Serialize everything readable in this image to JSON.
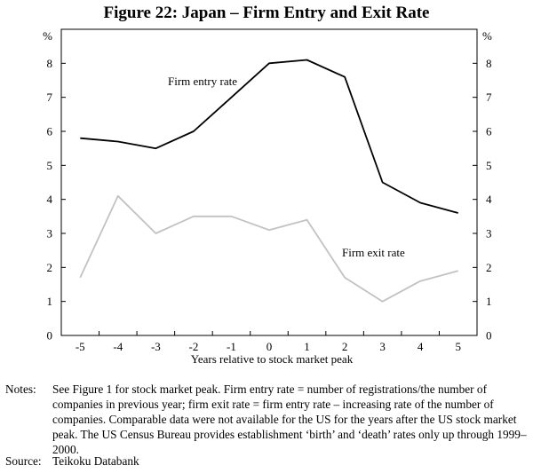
{
  "title": "Figure 22: Japan – Firm Entry and Exit Rate",
  "chart_data": {
    "type": "line",
    "xlabel": "Years relative to stock market peak",
    "y_unit_left": "%",
    "y_unit_right": "%",
    "x": [
      -5,
      -4,
      -3,
      -2,
      -1,
      0,
      1,
      2,
      3,
      4,
      5
    ],
    "x_tick_labels": [
      "-5",
      "-4",
      "-3",
      "-2",
      "-1",
      "0",
      "1",
      "2",
      "3",
      "4",
      "5"
    ],
    "ylim": [
      0,
      9
    ],
    "y_ticks": [
      0,
      1,
      2,
      3,
      4,
      5,
      6,
      7,
      8
    ],
    "series": [
      {
        "name": "Firm entry rate",
        "color": "#000000",
        "values": [
          5.8,
          5.7,
          5.5,
          6.0,
          7.0,
          8.0,
          8.1,
          7.6,
          4.5,
          3.9,
          3.6
        ]
      },
      {
        "name": "Firm exit rate",
        "color": "#c2c2c2",
        "values": [
          1.7,
          4.1,
          3.0,
          3.5,
          3.5,
          3.1,
          3.4,
          1.7,
          1.0,
          1.6,
          1.9
        ]
      }
    ]
  },
  "notes": {
    "label": "Notes:",
    "text": "See Figure 1 for stock market peak. Firm entry rate = number of registrations/the number of companies in previous year; firm exit rate = firm entry rate – increasing rate of the number of companies. Comparable data were not available for the US for the years after the US stock market peak. The US Census Bureau provides establishment ‘birth’ and ‘death’ rates only up through 1999–2000."
  },
  "source": {
    "label": "Source:",
    "text": "Teikoku Databank"
  }
}
